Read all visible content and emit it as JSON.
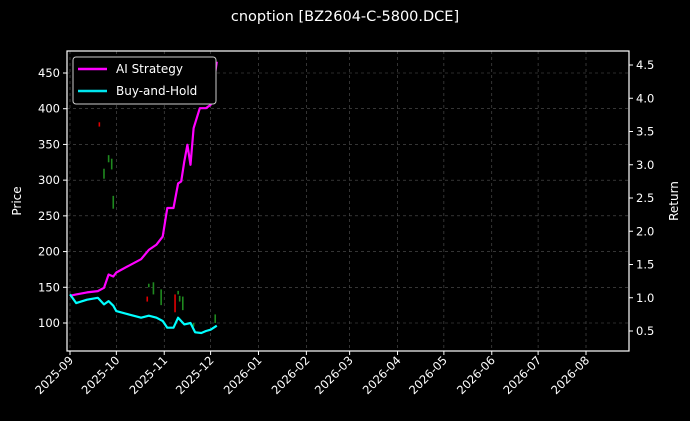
{
  "title": "cnoption [BZ2604-C-5800.DCE]",
  "chart_data": {
    "type": "line",
    "title": "cnoption [BZ2604-C-5800.DCE]",
    "xlabel": "",
    "ylabel": "Price",
    "ylabel_right": "Return",
    "x_ticks": [
      "2025-09",
      "2025-10",
      "2025-11",
      "2025-12",
      "2026-01",
      "2026-02",
      "2026-03",
      "2026-04",
      "2026-05",
      "2026-06",
      "2026-07",
      "2026-08"
    ],
    "yticks_left": [
      100,
      150,
      200,
      250,
      300,
      350,
      400,
      450
    ],
    "yticks_right": [
      0.5,
      1.0,
      1.5,
      2.0,
      2.5,
      3.0,
      3.5,
      4.0,
      4.5
    ],
    "ylim_left": [
      70,
      480
    ],
    "ylim_right": [
      0.25,
      4.65
    ],
    "grid": true,
    "legend_position": "upper left",
    "legend": [
      "AI Strategy",
      "Buy-and-Hold"
    ],
    "series": [
      {
        "name": "AI Strategy",
        "axis": "right",
        "color": "#ff00ff",
        "x": [
          "2025-09-01",
          "2025-09-05",
          "2025-09-12",
          "2025-09-19",
          "2025-09-23",
          "2025-09-26",
          "2025-09-29",
          "2025-10-01",
          "2025-10-09",
          "2025-10-17",
          "2025-10-22",
          "2025-10-27",
          "2025-10-31",
          "2025-11-03",
          "2025-11-07",
          "2025-11-10",
          "2025-11-12",
          "2025-11-14",
          "2025-11-16",
          "2025-11-18",
          "2025-11-20",
          "2025-11-24",
          "2025-11-28",
          "2025-12-01",
          "2025-12-05"
        ],
        "values": [
          1.03,
          1.05,
          1.08,
          1.1,
          1.15,
          1.35,
          1.32,
          1.38,
          1.48,
          1.58,
          1.72,
          1.8,
          1.92,
          2.35,
          2.35,
          2.72,
          2.75,
          3.05,
          3.3,
          3.0,
          3.55,
          3.85,
          3.85,
          3.9,
          4.55
        ]
      },
      {
        "name": "Buy-and-Hold",
        "axis": "right",
        "color": "#00ffff",
        "x": [
          "2025-09-01",
          "2025-09-05",
          "2025-09-12",
          "2025-09-19",
          "2025-09-23",
          "2025-09-26",
          "2025-09-29",
          "2025-10-01",
          "2025-10-09",
          "2025-10-17",
          "2025-10-22",
          "2025-10-27",
          "2025-10-31",
          "2025-11-03",
          "2025-11-07",
          "2025-11-10",
          "2025-11-14",
          "2025-11-18",
          "2025-11-21",
          "2025-11-25",
          "2025-11-28",
          "2025-12-01",
          "2025-12-05"
        ],
        "values": [
          1.05,
          0.92,
          0.97,
          1.0,
          0.9,
          0.95,
          0.88,
          0.8,
          0.75,
          0.7,
          0.73,
          0.7,
          0.65,
          0.55,
          0.55,
          0.7,
          0.6,
          0.62,
          0.48,
          0.47,
          0.5,
          0.52,
          0.58
        ]
      }
    ],
    "candles_note": "Sparse OHLC candlestick bars on left Price axis (green up, red down)",
    "candles": [
      {
        "x": "2025-09-20",
        "low": 375,
        "high": 381,
        "color": "red"
      },
      {
        "x": "2025-09-23",
        "low": 302,
        "high": 316,
        "color": "green"
      },
      {
        "x": "2025-09-26",
        "low": 325,
        "high": 335,
        "color": "green"
      },
      {
        "x": "2025-09-28",
        "low": 315,
        "high": 330,
        "color": "green"
      },
      {
        "x": "2025-09-29",
        "low": 260,
        "high": 278,
        "color": "green"
      },
      {
        "x": "2025-10-21",
        "low": 130,
        "high": 137,
        "color": "red"
      },
      {
        "x": "2025-10-22",
        "low": 150,
        "high": 155,
        "color": "green"
      },
      {
        "x": "2025-10-25",
        "low": 140,
        "high": 157,
        "color": "green"
      },
      {
        "x": "2025-10-30",
        "low": 125,
        "high": 147,
        "color": "green"
      },
      {
        "x": "2025-11-08",
        "low": 115,
        "high": 140,
        "color": "red"
      },
      {
        "x": "2025-11-10",
        "low": 140,
        "high": 145,
        "color": "green"
      },
      {
        "x": "2025-11-11",
        "low": 130,
        "high": 138,
        "color": "green"
      },
      {
        "x": "2025-11-13",
        "low": 118,
        "high": 137,
        "color": "green"
      },
      {
        "x": "2025-11-20",
        "low": 95,
        "high": 100,
        "color": "green"
      },
      {
        "x": "2025-12-04",
        "low": 100,
        "high": 112,
        "color": "green"
      }
    ]
  },
  "axes": {
    "left_label": "Price",
    "right_label": "Return"
  },
  "legend": {
    "items": [
      {
        "label": "AI Strategy",
        "color": "#ff00ff"
      },
      {
        "label": "Buy-and-Hold",
        "color": "#00e5ee"
      }
    ]
  }
}
